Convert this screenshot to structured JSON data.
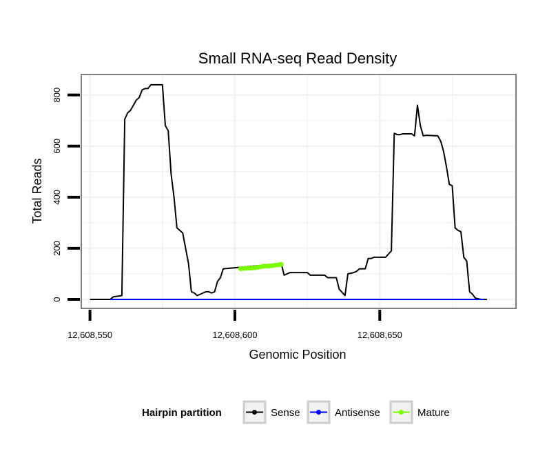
{
  "chart_data": {
    "type": "line",
    "title": "Small RNA-seq Read Density",
    "xlabel": "Genomic Position",
    "ylabel": "Total Reads",
    "xlim": [
      12608547,
      12608697
    ],
    "ylim": [
      -35,
      880
    ],
    "x_ticks": [
      12608550,
      12608600,
      12608650
    ],
    "x_tick_labels": [
      "12,608,550",
      "12,608,600",
      "12,608,650"
    ],
    "y_ticks": [
      0,
      200,
      400,
      600,
      800
    ],
    "y_tick_labels": [
      "0",
      "200",
      "400",
      "600",
      "800"
    ],
    "grid": true,
    "legend": {
      "title": "Hairpin partition",
      "position": "bottom",
      "entries": [
        {
          "name": "Sense",
          "color": "#000000"
        },
        {
          "name": "Antisense",
          "color": "#0000ff"
        },
        {
          "name": "Mature",
          "color": "#7cfc00"
        }
      ]
    },
    "series": [
      {
        "name": "Sense",
        "color": "#000000",
        "points": [
          [
            12608550,
            0
          ],
          [
            12608557,
            0
          ],
          [
            12608558,
            10
          ],
          [
            12608561,
            15
          ],
          [
            12608562,
            705
          ],
          [
            12608563,
            730
          ],
          [
            12608564,
            740
          ],
          [
            12608565,
            760
          ],
          [
            12608566,
            780
          ],
          [
            12608567,
            790
          ],
          [
            12608568,
            820
          ],
          [
            12608569,
            825
          ],
          [
            12608570,
            825
          ],
          [
            12608571,
            840
          ],
          [
            12608575,
            840
          ],
          [
            12608576,
            680
          ],
          [
            12608577,
            660
          ],
          [
            12608578,
            490
          ],
          [
            12608579,
            400
          ],
          [
            12608580,
            280
          ],
          [
            12608581,
            270
          ],
          [
            12608582,
            260
          ],
          [
            12608583,
            200
          ],
          [
            12608584,
            140
          ],
          [
            12608585,
            30
          ],
          [
            12608586,
            25
          ],
          [
            12608587,
            15
          ],
          [
            12608588,
            20
          ],
          [
            12608589,
            25
          ],
          [
            12608590,
            30
          ],
          [
            12608591,
            30
          ],
          [
            12608592,
            25
          ],
          [
            12608593,
            30
          ],
          [
            12608594,
            70
          ],
          [
            12608595,
            85
          ],
          [
            12608596,
            120
          ],
          [
            12608616,
            140
          ],
          [
            12608617,
            95
          ],
          [
            12608618,
            100
          ],
          [
            12608619,
            105
          ],
          [
            12608622,
            105
          ],
          [
            12608625,
            105
          ],
          [
            12608626,
            95
          ],
          [
            12608628,
            95
          ],
          [
            12608631,
            95
          ],
          [
            12608632,
            85
          ],
          [
            12608635,
            85
          ],
          [
            12608636,
            40
          ],
          [
            12608638,
            15
          ],
          [
            12608639,
            100
          ],
          [
            12608641,
            105
          ],
          [
            12608642,
            110
          ],
          [
            12608643,
            120
          ],
          [
            12608645,
            120
          ],
          [
            12608646,
            160
          ],
          [
            12608647,
            160
          ],
          [
            12608648,
            165
          ],
          [
            12608652,
            165
          ],
          [
            12608654,
            190
          ],
          [
            12608655,
            650
          ],
          [
            12608656,
            645
          ],
          [
            12608657,
            645
          ],
          [
            12608658,
            648
          ],
          [
            12608661,
            648
          ],
          [
            12608662,
            640
          ],
          [
            12608663,
            760
          ],
          [
            12608664,
            680
          ],
          [
            12608665,
            640
          ],
          [
            12608666,
            642
          ],
          [
            12608670,
            640
          ],
          [
            12608671,
            620
          ],
          [
            12608672,
            580
          ],
          [
            12608673,
            520
          ],
          [
            12608674,
            450
          ],
          [
            12608675,
            445
          ],
          [
            12608676,
            280
          ],
          [
            12608677,
            270
          ],
          [
            12608678,
            265
          ],
          [
            12608679,
            165
          ],
          [
            12608680,
            150
          ],
          [
            12608681,
            30
          ],
          [
            12608682,
            20
          ],
          [
            12608683,
            5
          ],
          [
            12608685,
            0
          ],
          [
            12608687,
            0
          ]
        ]
      },
      {
        "name": "Antisense",
        "color": "#0000ff",
        "points": [
          [
            12608557,
            0
          ],
          [
            12608686,
            0
          ]
        ]
      },
      {
        "name": "Mature",
        "color": "#7cfc00",
        "points": [
          [
            12608602,
            120
          ],
          [
            12608603,
            121
          ],
          [
            12608604,
            122
          ],
          [
            12608605,
            122
          ],
          [
            12608606,
            123
          ],
          [
            12608607,
            124
          ],
          [
            12608608,
            126
          ],
          [
            12608609,
            128
          ],
          [
            12608610,
            130
          ],
          [
            12608611,
            130
          ],
          [
            12608612,
            131
          ],
          [
            12608613,
            132
          ],
          [
            12608614,
            134
          ],
          [
            12608615,
            135
          ],
          [
            12608616,
            137
          ]
        ]
      }
    ]
  }
}
